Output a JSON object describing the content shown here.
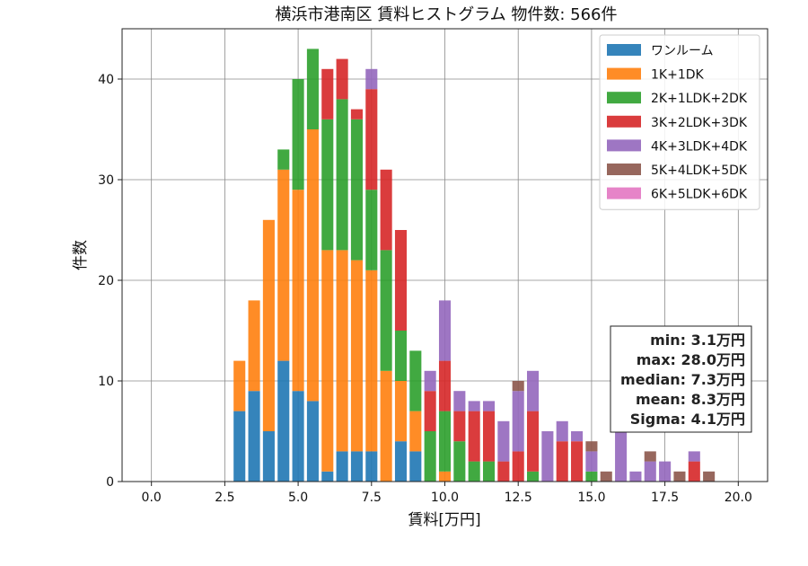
{
  "chart_data": {
    "type": "bar",
    "stacked": true,
    "title": "横浜市港南区 賃料ヒストグラム  物件数: 566件",
    "xlabel": "賃料[万円]",
    "ylabel": "件数",
    "xlim": [
      -1.0,
      21.0
    ],
    "ylim": [
      0,
      45
    ],
    "xticks": [
      "0.0",
      "2.5",
      "5.0",
      "7.5",
      "10.0",
      "12.5",
      "15.0",
      "17.5",
      "20.0"
    ],
    "yticks": [
      "0",
      "10",
      "20",
      "30",
      "40"
    ],
    "grid": true,
    "legend_position": "top-right",
    "bin_width": 0.5,
    "x": [
      3.0,
      3.5,
      4.0,
      4.5,
      5.0,
      5.5,
      6.0,
      6.5,
      7.0,
      7.5,
      8.0,
      8.5,
      9.0,
      9.5,
      10.0,
      10.5,
      11.0,
      11.5,
      12.0,
      12.5,
      13.0,
      13.5,
      14.0,
      14.5,
      15.0,
      15.5,
      16.0,
      16.5,
      17.0,
      17.5,
      18.0,
      18.5,
      19.0,
      19.5
    ],
    "series": [
      {
        "name": "ワンルーム",
        "color": "#1f77b4",
        "values": [
          7,
          9,
          5,
          12,
          9,
          8,
          1,
          3,
          3,
          3,
          0,
          4,
          3,
          0,
          0,
          0,
          0,
          0,
          0,
          0,
          0,
          0,
          0,
          0,
          0,
          0,
          0,
          0,
          0,
          0,
          0,
          0,
          0,
          0
        ]
      },
      {
        "name": "1K+1DK",
        "color": "#ff7f0e",
        "values": [
          5,
          9,
          21,
          19,
          20,
          27,
          22,
          20,
          19,
          18,
          11,
          6,
          4,
          0,
          1,
          0,
          0,
          0,
          0,
          0,
          0,
          0,
          0,
          0,
          0,
          0,
          0,
          0,
          0,
          0,
          0,
          0,
          0,
          0
        ]
      },
      {
        "name": "2K+1LDK+2DK",
        "color": "#2ca02c",
        "values": [
          0,
          0,
          0,
          2,
          11,
          8,
          13,
          15,
          14,
          8,
          12,
          5,
          6,
          5,
          6,
          4,
          2,
          2,
          0,
          0,
          1,
          0,
          0,
          0,
          1,
          0,
          0,
          0,
          0,
          0,
          0,
          0,
          0,
          0
        ]
      },
      {
        "name": "3K+2LDK+3DK",
        "color": "#d62728",
        "values": [
          0,
          0,
          0,
          0,
          0,
          0,
          5,
          4,
          1,
          10,
          8,
          10,
          0,
          4,
          5,
          3,
          5,
          5,
          2,
          3,
          6,
          0,
          4,
          4,
          0,
          0,
          0,
          0,
          0,
          0,
          0,
          2,
          0,
          0
        ]
      },
      {
        "name": "4K+3LDK+4DK",
        "color": "#9467bd",
        "values": [
          0,
          0,
          0,
          0,
          0,
          0,
          0,
          0,
          0,
          2,
          0,
          0,
          0,
          2,
          6,
          2,
          1,
          1,
          4,
          6,
          4,
          5,
          2,
          1,
          2,
          0,
          5,
          1,
          2,
          2,
          0,
          1,
          0,
          0
        ]
      },
      {
        "name": "5K+4LDK+5DK",
        "color": "#8c564b",
        "values": [
          0,
          0,
          0,
          0,
          0,
          0,
          0,
          0,
          0,
          0,
          0,
          0,
          0,
          0,
          0,
          0,
          0,
          0,
          0,
          1,
          0,
          0,
          0,
          0,
          1,
          1,
          0,
          0,
          1,
          0,
          1,
          0,
          1,
          0
        ]
      },
      {
        "name": "6K+5LDK+6DK",
        "color": "#e377c2",
        "values": [
          0,
          0,
          0,
          0,
          0,
          0,
          0,
          0,
          0,
          0,
          0,
          0,
          0,
          0,
          0,
          0,
          0,
          0,
          0,
          0,
          0,
          0,
          0,
          0,
          0,
          0,
          0,
          0,
          0,
          0,
          0,
          0,
          0,
          0
        ]
      }
    ],
    "stats": [
      "min: 3.1万円",
      "max: 28.0万円",
      "median: 7.3万円",
      "mean: 8.3万円",
      "Sigma: 4.1万円"
    ]
  }
}
